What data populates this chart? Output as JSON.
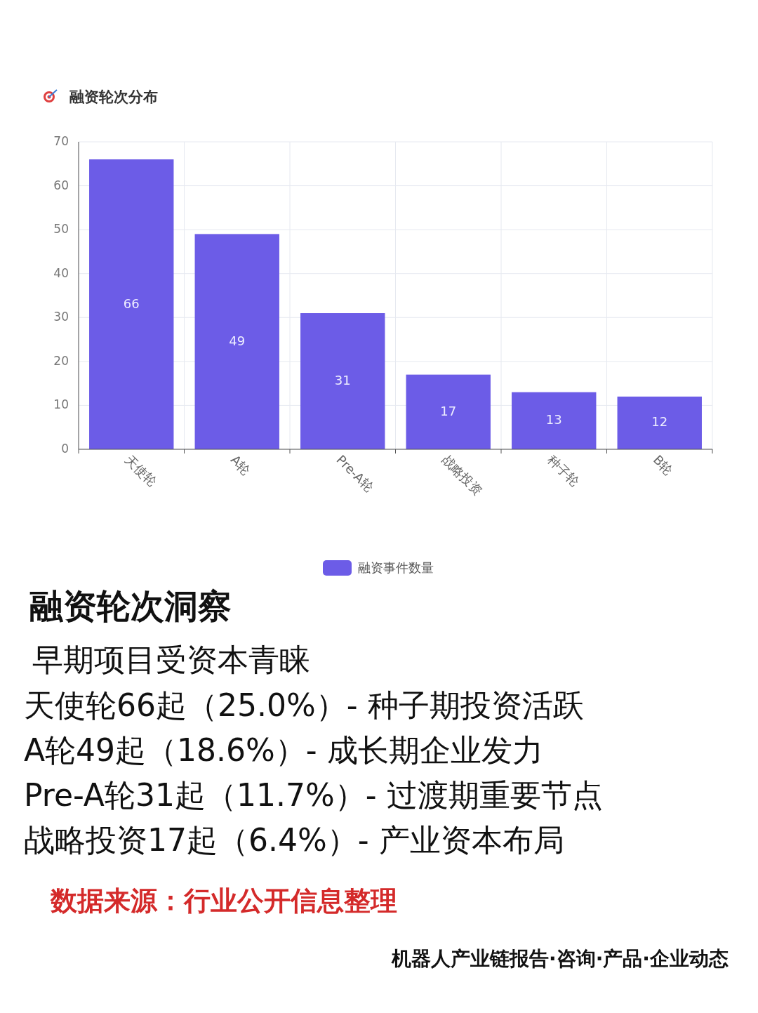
{
  "chart_data": {
    "type": "bar",
    "title": "融资轮次分布",
    "categories": [
      "天使轮",
      "A轮",
      "Pre-A轮",
      "战略投资",
      "种子轮",
      "B轮"
    ],
    "series": [
      {
        "name": "融资事件数量",
        "color": "#6c5ce7",
        "values": [
          66,
          49,
          31,
          17,
          13,
          12
        ]
      }
    ],
    "ylim": [
      0,
      70
    ],
    "yticks": [
      0,
      10,
      20,
      30,
      40,
      50,
      60,
      70
    ],
    "grid": true,
    "legend": "bottom",
    "data_labels": true,
    "annotations": [
      "融资轮次洞察",
      "早期项目受资本青睐",
      "天使轮66起（25.0%）- 种子期投资活跃",
      "A轮49起（18.6%）- 成长期企业发力",
      "Pre-A轮31起（11.7%）- 过渡期重要节点",
      "战略投资17起（6.4%）- 产业资本布局",
      "数据来源：行业公开信息整理",
      "机器人产业链报告·咨询·产品·企业动态"
    ]
  }
}
